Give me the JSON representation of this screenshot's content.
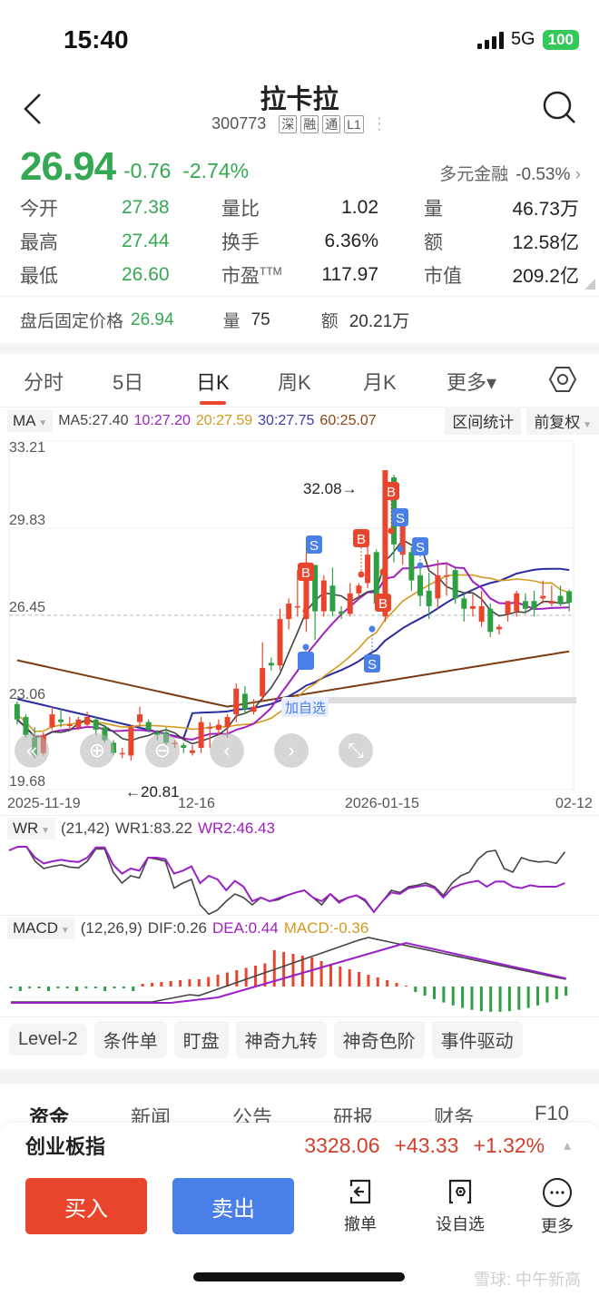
{
  "status_bar": {
    "time": "15:40",
    "network": "5G",
    "battery": "100"
  },
  "header": {
    "title": "拉卡拉",
    "code": "300773",
    "tags": [
      "深",
      "融",
      "通",
      "L1"
    ],
    "more": "⋮"
  },
  "quote": {
    "price": "26.94",
    "change": "-0.76",
    "change_pct": "-2.74%",
    "sector_name": "多元金融",
    "sector_pct": "-0.53%",
    "up_color": "#d0402b",
    "down_color": "#34a853"
  },
  "stats": [
    {
      "l1": "今开",
      "v1": "27.38",
      "l2": "量比",
      "v2": "1.02",
      "l3": "量",
      "v3": "46.73万"
    },
    {
      "l1": "最高",
      "v1": "27.44",
      "l2": "换手",
      "v2": "6.36%",
      "l3": "额",
      "v3": "12.58亿"
    },
    {
      "l1": "最低",
      "v1": "26.60",
      "l2": "市盈",
      "l2sup": "TTM",
      "v2": "117.97",
      "l3": "市值",
      "v3": "209.2亿"
    }
  ],
  "after_hours": {
    "label": "盘后固定价格",
    "price": "26.94",
    "vol_label": "量",
    "vol": "75",
    "amt_label": "额",
    "amt": "20.21万"
  },
  "kline_tabs": [
    {
      "label": "分时"
    },
    {
      "label": "5日"
    },
    {
      "label": "日K",
      "active": true
    },
    {
      "label": "周K"
    },
    {
      "label": "月K"
    },
    {
      "label": "更多▾"
    }
  ],
  "ma_bar": {
    "selector": "MA",
    "ma5": "MA5:27.40",
    "ma10": "10:27.20",
    "ma20": "20:27.59",
    "ma30": "30:27.75",
    "ma60": "60:25.07",
    "interval_stats": "区间统计",
    "adjust": "前复权"
  },
  "chart_labels": {
    "y_ticks": [
      "33.21",
      "29.83",
      "26.45",
      "23.06",
      "19.68"
    ],
    "x_ticks": [
      "2025-11-19",
      "12-16",
      "2026-01-15",
      "02-12"
    ],
    "high_marker": "32.08→",
    "low_marker": "←20.81",
    "add_watch": "加自选"
  },
  "wr": {
    "selector": "WR",
    "params": "(21,42)",
    "wr1": "WR1:83.22",
    "wr2": "WR2:46.43"
  },
  "macd": {
    "selector": "MACD",
    "params": "(12,26,9)",
    "dif": "DIF:0.26",
    "dea": "DEA:0.44",
    "macd": "MACD:-0.36"
  },
  "tools": [
    "Level-2",
    "条件单",
    "盯盘",
    "神奇九转",
    "神奇色阶",
    "事件驱动"
  ],
  "info_tabs": [
    "资金",
    "新闻",
    "公告",
    "研报",
    "财务",
    "F10"
  ],
  "index_bar": {
    "name": "创业板指",
    "value": "3328.06",
    "change": "+43.33",
    "pct": "+1.32%"
  },
  "bottom": {
    "buy": "买入",
    "sell": "卖出",
    "cancel": "撤单",
    "watch": "设自选",
    "more": "更多"
  },
  "watermark": "雪球: 中午新高",
  "chart_data": {
    "type": "candlestick",
    "title": "拉卡拉 300773 日K",
    "ylim": [
      19.68,
      33.21
    ],
    "y_ticks": [
      33.21,
      29.83,
      26.45,
      23.06,
      19.68
    ],
    "x_labels": [
      "2025-11-19",
      "12-16",
      "2026-01-15",
      "02-12"
    ],
    "annotations": {
      "high": 32.08,
      "low": 20.81,
      "last_close": 26.94
    },
    "ma": {
      "MA5": 27.4,
      "MA10": 27.2,
      "MA20": 27.59,
      "MA30": 27.75,
      "MA60": 25.07
    },
    "candles": [
      [
        23.0,
        22.4,
        23.1,
        22.2
      ],
      [
        22.5,
        21.8,
        22.6,
        21.7
      ],
      [
        21.7,
        21.0,
        22.1,
        20.9
      ],
      [
        21.1,
        21.8,
        21.9,
        21.0
      ],
      [
        22.1,
        22.6,
        22.9,
        22.0
      ],
      [
        22.4,
        22.3,
        22.8,
        22.1
      ],
      [
        22.2,
        22.2,
        22.5,
        22.0
      ],
      [
        22.1,
        22.4,
        22.5,
        22.0
      ],
      [
        22.2,
        22.5,
        22.7,
        22.1
      ],
      [
        22.4,
        22.0,
        22.5,
        21.8
      ],
      [
        22.1,
        21.6,
        22.2,
        21.5
      ],
      [
        21.5,
        21.1,
        21.6,
        21.0
      ],
      [
        21.1,
        21.1,
        21.3,
        20.9
      ],
      [
        21.0,
        22.1,
        22.2,
        20.81
      ],
      [
        22.3,
        22.6,
        22.9,
        22.1
      ],
      [
        22.3,
        22.0,
        22.4,
        21.9
      ],
      [
        21.9,
        21.8,
        22.0,
        21.6
      ],
      [
        21.9,
        21.5,
        22.1,
        21.4
      ],
      [
        21.5,
        21.5,
        21.6,
        21.3
      ],
      [
        21.4,
        21.3,
        21.5,
        21.1
      ],
      [
        21.1,
        21.2,
        21.4,
        21.0
      ],
      [
        21.3,
        22.3,
        22.5,
        21.1
      ],
      [
        22.1,
        22.1,
        22.3,
        21.3
      ],
      [
        22.0,
        22.2,
        22.4,
        21.8
      ],
      [
        22.1,
        22.5,
        22.6,
        21.7
      ],
      [
        22.6,
        23.6,
        23.8,
        22.3
      ],
      [
        23.4,
        22.8,
        23.7,
        22.6
      ],
      [
        22.7,
        22.9,
        23.2,
        22.6
      ],
      [
        23.3,
        24.4,
        25.4,
        23.1
      ],
      [
        24.6,
        24.5,
        24.8,
        24.3
      ],
      [
        24.5,
        26.3,
        26.7,
        24.3
      ],
      [
        26.3,
        26.9,
        27.1,
        25.9
      ],
      [
        26.8,
        26.8,
        28.2,
        26.4
      ],
      [
        26.3,
        28.5,
        28.9,
        25.8
      ],
      [
        28.4,
        26.6,
        28.4,
        25.5
      ],
      [
        26.6,
        27.8,
        28.0,
        26.4
      ],
      [
        27.6,
        26.6,
        28.3,
        26.4
      ],
      [
        26.6,
        26.5,
        26.8,
        26.3
      ],
      [
        26.5,
        27.3,
        27.7,
        26.4
      ],
      [
        27.3,
        27.6,
        27.7,
        27.1
      ],
      [
        27.7,
        28.8,
        29.2,
        27.5
      ],
      [
        28.9,
        26.9,
        29.0,
        26.6
      ],
      [
        26.4,
        32.08,
        32.08,
        26.2
      ],
      [
        31.8,
        29.2,
        31.9,
        28.5
      ],
      [
        28.8,
        29.9,
        30.3,
        28.4
      ],
      [
        28.9,
        27.8,
        29.1,
        27.4
      ],
      [
        28.0,
        27.2,
        28.4,
        26.8
      ],
      [
        27.4,
        26.8,
        28.1,
        26.3
      ],
      [
        27.1,
        28.0,
        28.6,
        26.7
      ],
      [
        28.0,
        28.0,
        28.5,
        27.2
      ],
      [
        28.2,
        27.1,
        28.3,
        26.9
      ],
      [
        27.1,
        26.7,
        27.3,
        26.2
      ],
      [
        26.7,
        26.8,
        27.3,
        26.4
      ],
      [
        26.2,
        26.8,
        27.4,
        26.0
      ],
      [
        26.7,
        25.8,
        26.9,
        25.6
      ],
      [
        25.9,
        26.0,
        26.1,
        25.7
      ],
      [
        26.5,
        27.0,
        27.0,
        26.2
      ],
      [
        26.6,
        27.3,
        27.4,
        26.4
      ],
      [
        27.0,
        26.7,
        27.3,
        26.5
      ],
      [
        27.0,
        26.7,
        27.4,
        26.4
      ],
      [
        27.1,
        27.2,
        27.8,
        26.9
      ],
      [
        26.9,
        27.0,
        27.6,
        26.8
      ],
      [
        27.2,
        26.9,
        27.6,
        26.8
      ],
      [
        27.38,
        26.94,
        27.44,
        26.6
      ]
    ]
  }
}
